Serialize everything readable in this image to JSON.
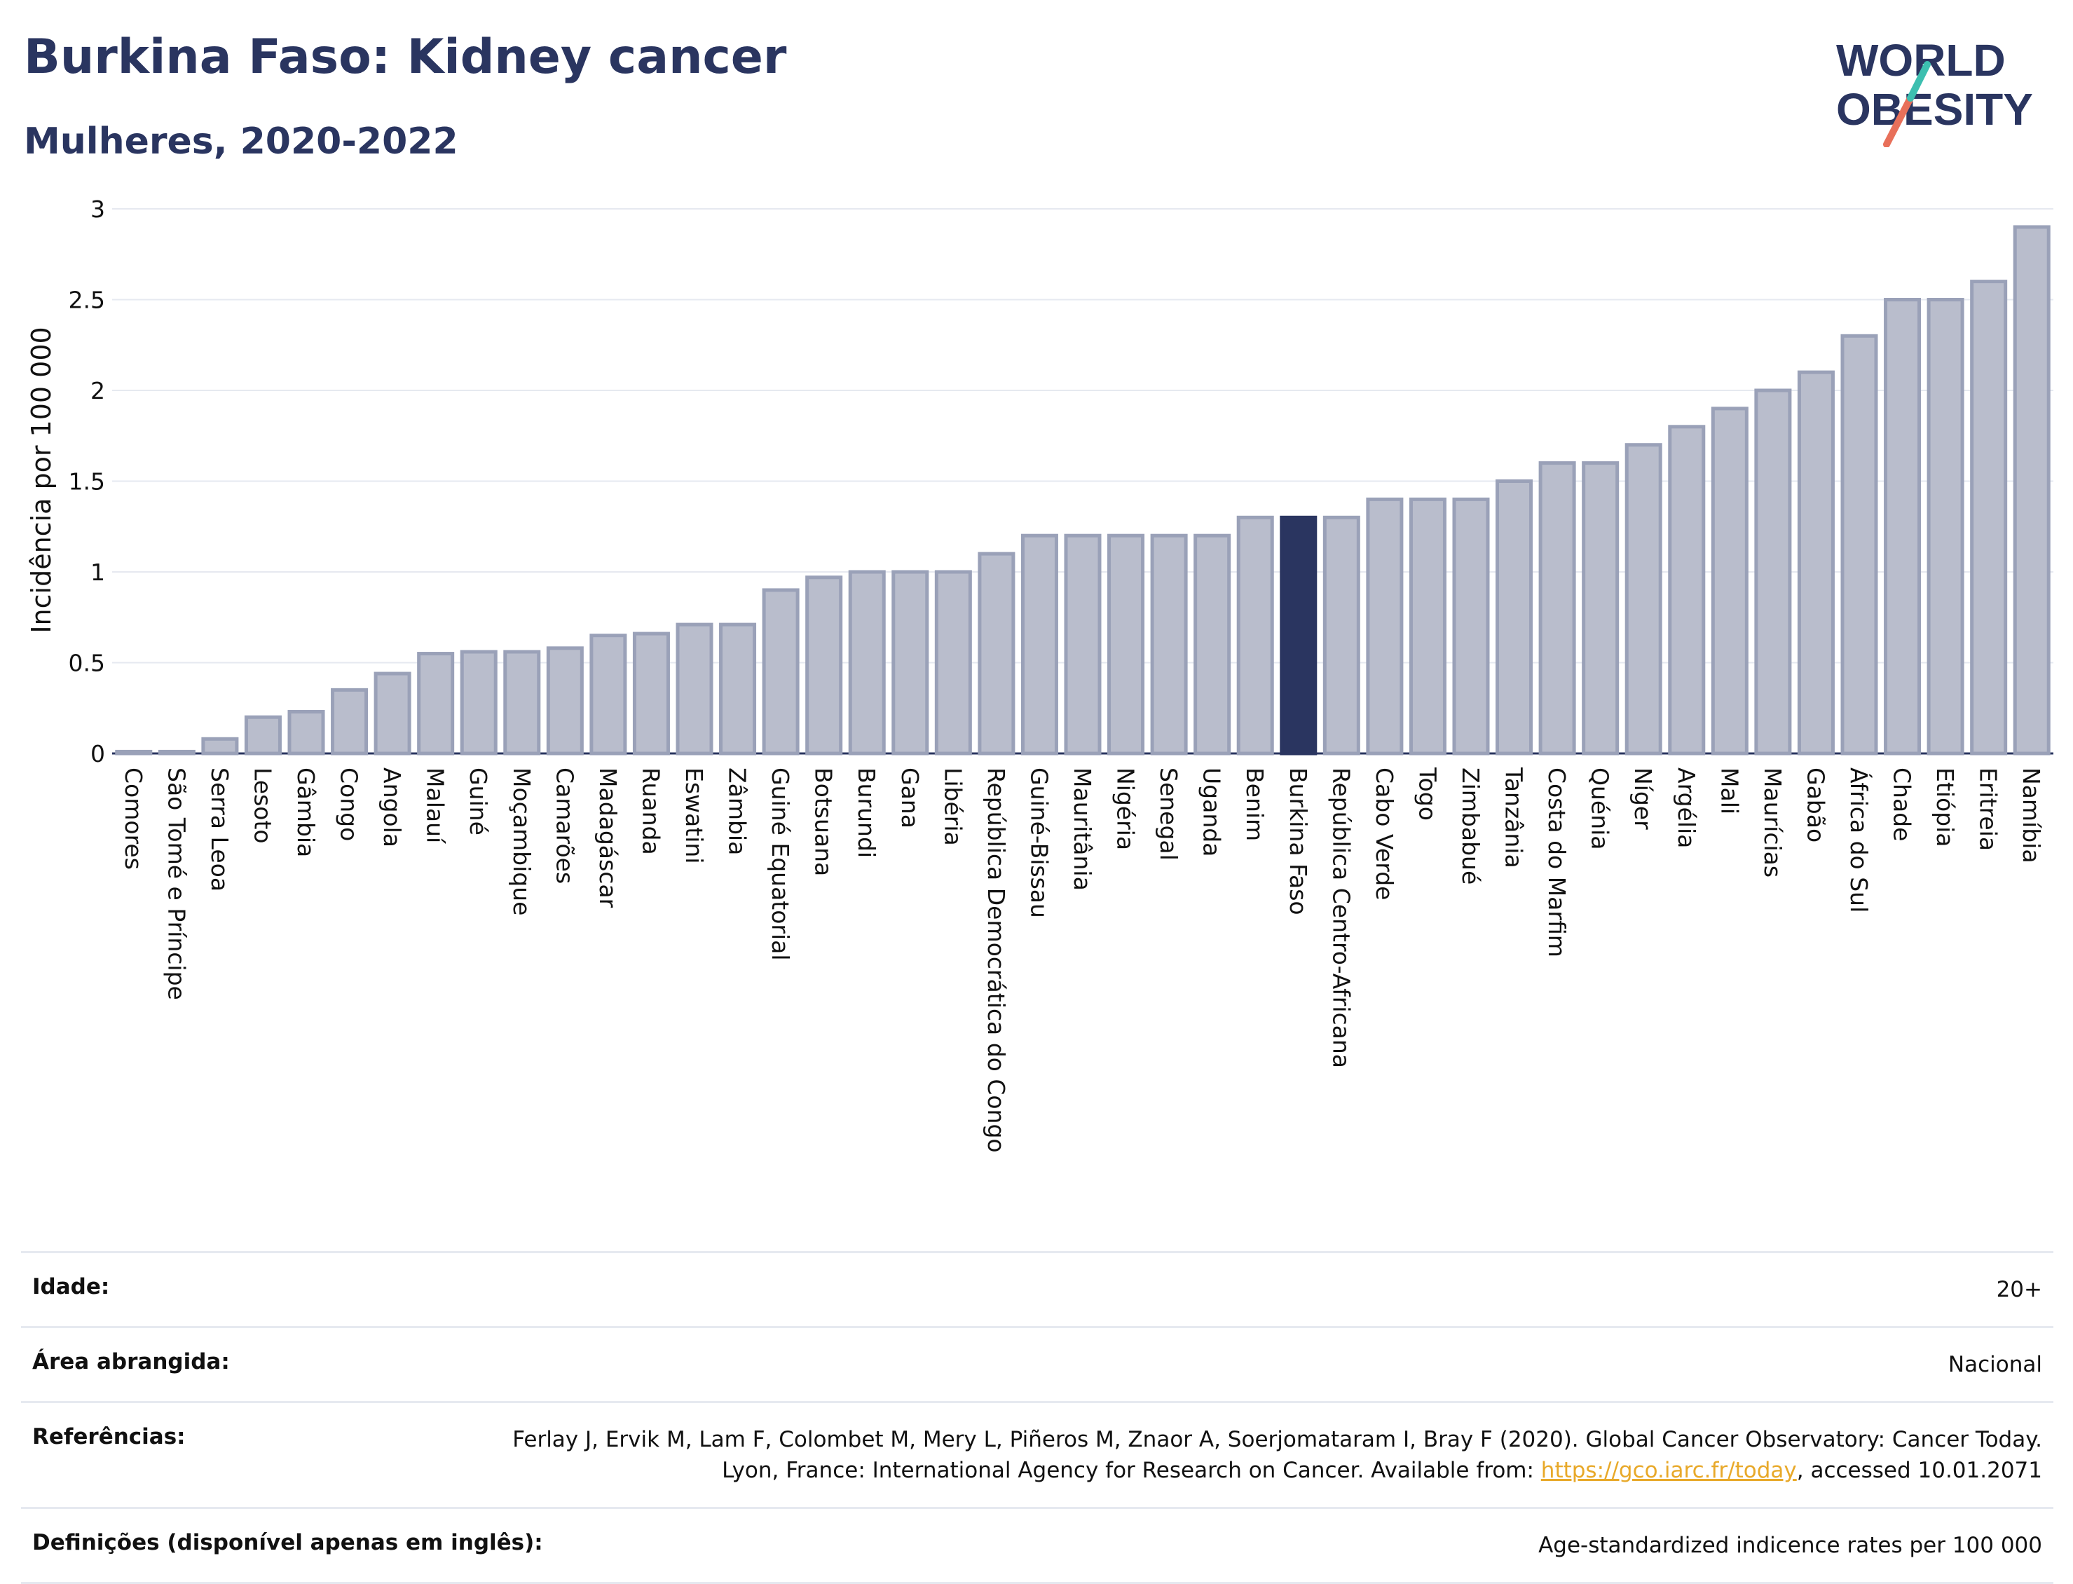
{
  "header": {
    "title": "Burkina Faso: Kidney cancer",
    "subtitle": "Mulheres, 2020-2022"
  },
  "logo": {
    "line1": "WORLD",
    "line2": "OBESITY"
  },
  "chart_data": {
    "type": "bar",
    "title": "Burkina Faso: Kidney cancer",
    "subtitle": "Mulheres, 2020-2022",
    "ylabel": "Incidência por 100 000",
    "xlabel": "",
    "ylim": [
      0,
      3
    ],
    "yticks": [
      "0",
      "0.5",
      "1",
      "1.5",
      "2",
      "2.5",
      "3"
    ],
    "grid": true,
    "highlight": "Burkina Faso",
    "colors": {
      "bar": "#b9bdcc",
      "bar_edge": "#9aa1b8",
      "highlight": "#2a3560",
      "grid": "#e6e9f0"
    },
    "categories": [
      "Comores",
      "São Tomé e Príncipe",
      "Serra Leoa",
      "Lesoto",
      "Gâmbia",
      "Congo",
      "Angola",
      "Malauí",
      "Guiné",
      "Moçambique",
      "Camarões",
      "Madagáscar",
      "Ruanda",
      "Eswatini",
      "Zâmbia",
      "Guiné Equatorial",
      "Botsuana",
      "Burundi",
      "Gana",
      "Libéria",
      "República Democrática do Congo",
      "Guiné-Bissau",
      "Mauritânia",
      "Nigéria",
      "Senegal",
      "Uganda",
      "Benim",
      "Burkina Faso",
      "República Centro-Africana",
      "Cabo Verde",
      "Togo",
      "Zimbabué",
      "Tanzânia",
      "Costa do Marfim",
      "Quénia",
      "Níger",
      "Argélia",
      "Mali",
      "Maurícias",
      "Gabão",
      "África do Sul",
      "Chade",
      "Etiópia",
      "Eritreia",
      "Namíbia"
    ],
    "values": [
      0.01,
      0.01,
      0.08,
      0.2,
      0.23,
      0.35,
      0.44,
      0.55,
      0.56,
      0.56,
      0.58,
      0.65,
      0.66,
      0.71,
      0.71,
      0.9,
      0.97,
      1.0,
      1.0,
      1.0,
      1.1,
      1.2,
      1.2,
      1.2,
      1.2,
      1.2,
      1.3,
      1.3,
      1.3,
      1.4,
      1.4,
      1.4,
      1.5,
      1.6,
      1.6,
      1.7,
      1.8,
      1.9,
      2.0,
      2.1,
      2.3,
      2.5,
      2.5,
      2.6,
      2.9
    ]
  },
  "info": {
    "rows": [
      {
        "label": "Idade:",
        "value": "20+"
      },
      {
        "label": "Área abrangida:",
        "value": "Nacional"
      },
      {
        "label": "Referências:",
        "value": "Ferlay J, Ervik M, Lam F, Colombet M, Mery L, Piñeros M, Znaor A, Soerjomataram I, Bray F (2020). Global Cancer Observatory: Cancer Today. Lyon, France: International Agency for Research on Cancer. Available from:",
        "link": "https://gco.iarc.fr/today",
        "suffix": ", accessed 10.01.2071"
      },
      {
        "label": "Definições (disponível apenas em inglês):",
        "value": "Age-standardized indicence rates per 100 000"
      }
    ]
  }
}
